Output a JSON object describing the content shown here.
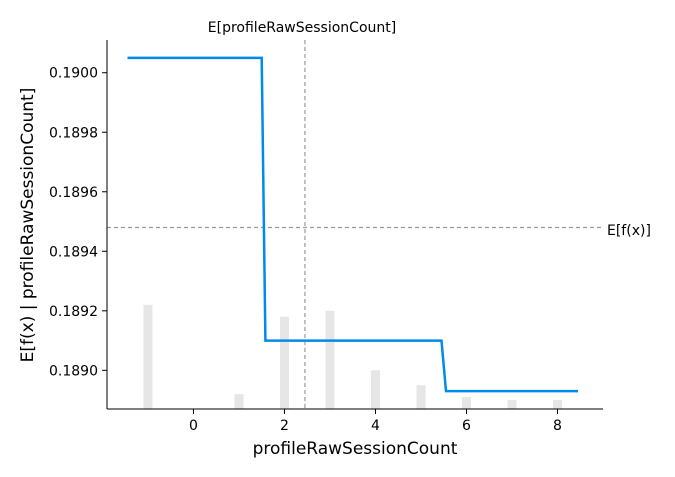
{
  "chart_data": {
    "type": "line",
    "title": "",
    "xlabel": "profileRawSessionCount",
    "ylabel": "E[f(x) | profileRawSessionCount]",
    "xlim": [
      -1.9,
      9.0
    ],
    "ylim": [
      0.18887,
      0.19011
    ],
    "xticks": [
      0,
      2,
      4,
      6,
      8
    ],
    "yticks": [
      0.189,
      0.1892,
      0.1894,
      0.1896,
      0.1898,
      0.19
    ],
    "ytick_labels": [
      "0.1890",
      "0.1892",
      "0.1894",
      "0.1896",
      "0.1898",
      "0.1900"
    ],
    "grid": false,
    "color": "#008bec",
    "series": [
      {
        "x": [
          -1.45,
          1.5,
          1.58,
          5.45,
          5.55,
          8.45
        ],
        "y": [
          0.19005,
          0.19005,
          0.1891,
          0.1891,
          0.18893,
          0.18893
        ]
      }
    ],
    "histogram": {
      "color": "#e6e6e6",
      "bars": [
        {
          "x": -1,
          "height": 0.00035
        },
        {
          "x": 1,
          "height": 5e-05
        },
        {
          "x": 2,
          "height": 0.00031
        },
        {
          "x": 3,
          "height": 0.00033
        },
        {
          "x": 4,
          "height": 0.00013
        },
        {
          "x": 5,
          "height": 8e-05
        },
        {
          "x": 6,
          "height": 4e-05
        },
        {
          "x": 7,
          "height": 3e-05
        },
        {
          "x": 8,
          "height": 3e-05
        }
      ]
    },
    "reference_lines": {
      "vertical": {
        "x": 2.45,
        "label": "E[profileRawSessionCount]"
      },
      "horizontal": {
        "y": 0.18948,
        "label": "E[f(x)]"
      }
    }
  }
}
